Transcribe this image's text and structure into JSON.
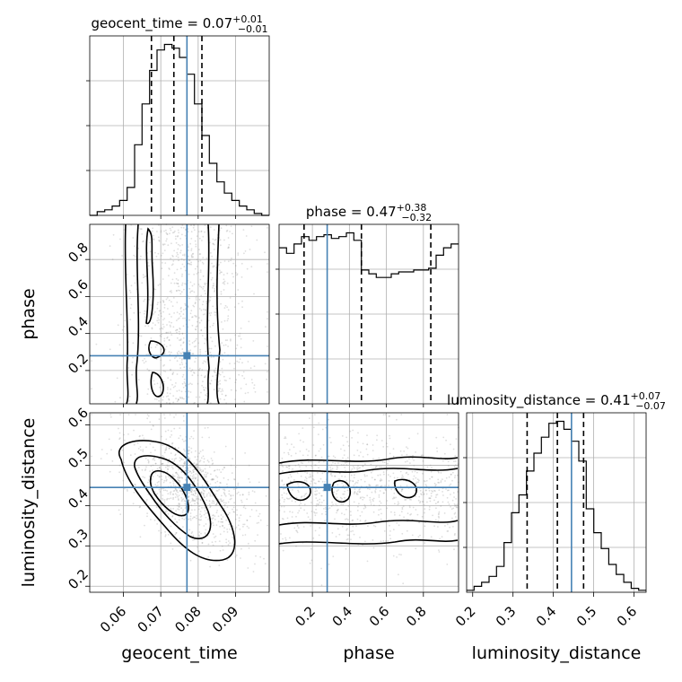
{
  "chart_data": {
    "type": "corner",
    "parameters": [
      "geocent_time",
      "phase",
      "luminosity_distance"
    ],
    "truths": {
      "geocent_time": 0.077,
      "phase": 0.28,
      "luminosity_distance": 0.445
    },
    "diagonal": [
      {
        "param": "geocent_time",
        "title": {
          "main": "geocent_time = 0.07",
          "sup": "+0.01",
          "sub": "−0.01"
        },
        "range": [
          0.051,
          0.099
        ],
        "quantiles": [
          0.0675,
          0.0735,
          0.081
        ],
        "bin_edges": [
          0.051,
          0.053,
          0.055,
          0.057,
          0.059,
          0.061,
          0.063,
          0.065,
          0.067,
          0.069,
          0.071,
          0.073,
          0.075,
          0.077,
          0.079,
          0.081,
          0.083,
          0.085,
          0.087,
          0.089,
          0.091,
          0.093,
          0.095,
          0.097,
          0.099
        ],
        "counts": [
          0,
          2,
          3,
          5,
          8,
          15,
          38,
          60,
          78,
          89,
          92,
          90,
          85,
          76,
          60,
          43,
          28,
          18,
          12,
          8,
          5,
          3,
          1,
          0
        ]
      },
      {
        "param": "phase",
        "title": {
          "main": "phase = 0.47",
          "sup": "+0.38",
          "sub": "−0.32"
        },
        "range": [
          0.02,
          0.99
        ],
        "quantiles": [
          0.155,
          0.465,
          0.84
        ],
        "bin_edges": [
          0.02,
          0.0604,
          0.1008,
          0.1412,
          0.1817,
          0.2221,
          0.2625,
          0.3029,
          0.3433,
          0.3837,
          0.4242,
          0.4646,
          0.505,
          0.5454,
          0.5858,
          0.6263,
          0.6667,
          0.7071,
          0.7475,
          0.7879,
          0.8283,
          0.8688,
          0.9092,
          0.9496,
          0.99
        ],
        "counts": [
          84,
          81,
          86,
          90,
          88,
          90,
          91,
          89,
          90,
          92,
          88,
          72,
          70,
          68,
          68,
          70,
          71,
          71,
          72,
          72,
          73,
          80,
          84,
          86
        ]
      },
      {
        "param": "luminosity_distance",
        "title": {
          "main": "luminosity_distance = 0.41",
          "sup": "+0.07",
          "sub": "−0.07"
        },
        "range": [
          0.185,
          0.63
        ],
        "quantiles": [
          0.335,
          0.41,
          0.475
        ],
        "bin_edges": [
          0.185,
          0.2035,
          0.2221,
          0.2406,
          0.2592,
          0.2777,
          0.2963,
          0.3148,
          0.3333,
          0.3519,
          0.3704,
          0.389,
          0.4075,
          0.4261,
          0.4446,
          0.4632,
          0.4817,
          0.5003,
          0.5188,
          0.5374,
          0.5559,
          0.5745,
          0.593,
          0.6116,
          0.63
        ],
        "counts": [
          1,
          3,
          5,
          8,
          13,
          25,
          40,
          49,
          61,
          70,
          78,
          85,
          86,
          82,
          76,
          66,
          42,
          30,
          22,
          14,
          9,
          5,
          2,
          1
        ]
      }
    ],
    "axes": {
      "geocent_time": {
        "range": [
          0.051,
          0.099
        ],
        "ticks": [
          0.06,
          0.07,
          0.08,
          0.09
        ],
        "tick_labels": [
          "0.06",
          "0.07",
          "0.08",
          "0.09"
        ],
        "label": "geocent_time"
      },
      "phase": {
        "range": [
          0.02,
          0.99
        ],
        "ticks": [
          0.2,
          0.4,
          0.6,
          0.8
        ],
        "tick_labels": [
          "0.2",
          "0.4",
          "0.6",
          "0.8"
        ],
        "label": "phase"
      },
      "luminosity_distance": {
        "range": [
          0.185,
          0.63
        ],
        "ticks": [
          0.2,
          0.3,
          0.4,
          0.5,
          0.6
        ],
        "tick_labels": [
          "0.2",
          "0.3",
          "0.4",
          "0.5",
          "0.6"
        ],
        "label": "luminosity_distance"
      }
    },
    "grid": true,
    "colors": {
      "truth": "#4682b4",
      "contour": "#000000",
      "density": "#000000"
    }
  }
}
